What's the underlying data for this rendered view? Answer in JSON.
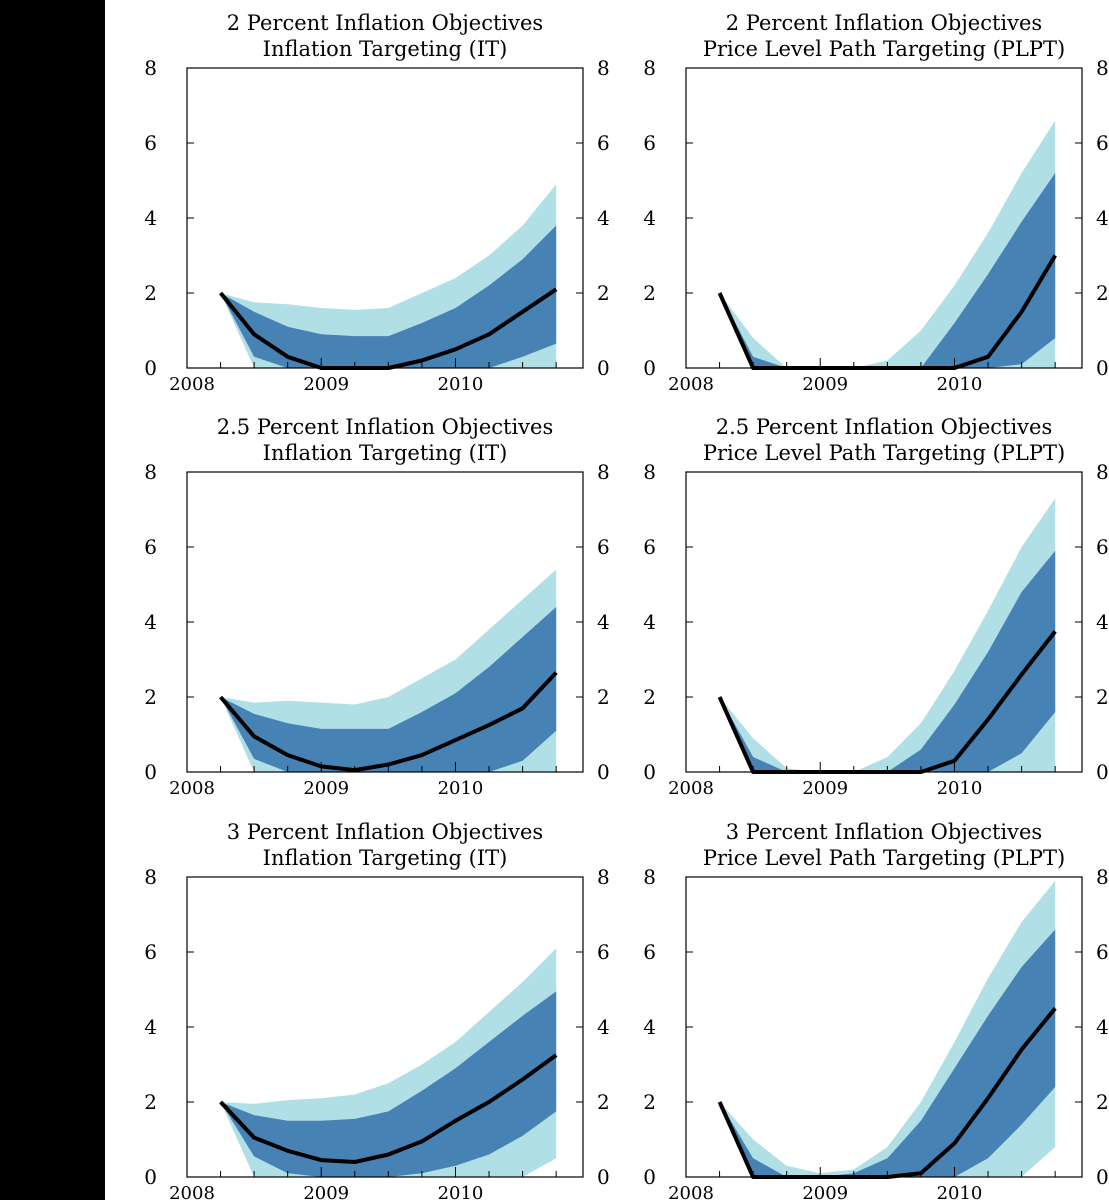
{
  "colors": {
    "outer_band": "#b0e0e6",
    "inner_band": "#4682b4",
    "median_line": "#000000",
    "side_bar": "#000000"
  },
  "chart_data": [
    {
      "type": "area",
      "title": "2 Percent Inflation Objectives",
      "subtitle": "Inflation Targeting (IT)",
      "xlabel": "",
      "ylabel": "",
      "xlim": [
        2008.0,
        2010.95
      ],
      "ylim": [
        0,
        8
      ],
      "x_ticks": [
        2008,
        2009,
        2010
      ],
      "y_ticks": [
        0,
        2,
        4,
        6,
        8
      ],
      "grid": false,
      "x": [
        2008.25,
        2008.5,
        2008.75,
        2009.0,
        2009.25,
        2009.5,
        2009.75,
        2010.0,
        2010.25,
        2010.5,
        2010.75
      ],
      "outer_upper": [
        2.0,
        1.75,
        1.7,
        1.6,
        1.55,
        1.6,
        2.0,
        2.4,
        3.0,
        3.8,
        4.9
      ],
      "inner_upper": [
        2.0,
        1.5,
        1.1,
        0.9,
        0.85,
        0.85,
        1.2,
        1.6,
        2.2,
        2.9,
        3.8
      ],
      "median": [
        2.0,
        0.9,
        0.3,
        0.0,
        0.0,
        0.0,
        0.2,
        0.5,
        0.9,
        1.5,
        2.1
      ],
      "inner_lower": [
        2.0,
        0.3,
        0.0,
        0.0,
        0.0,
        0.0,
        0.0,
        0.0,
        0.0,
        0.3,
        0.65
      ],
      "outer_lower": [
        2.0,
        0.0,
        0.0,
        0.0,
        0.0,
        0.0,
        0.0,
        0.0,
        0.0,
        0.0,
        0.0
      ]
    },
    {
      "type": "area",
      "title": "2 Percent Inflation Objectives",
      "subtitle": "Price Level Path Targeting (PLPT)",
      "xlabel": "",
      "ylabel": "",
      "xlim": [
        2008.0,
        2010.95
      ],
      "ylim": [
        0,
        8
      ],
      "x_ticks": [
        2008,
        2009,
        2010
      ],
      "y_ticks": [
        0,
        2,
        4,
        6,
        8
      ],
      "grid": false,
      "x": [
        2008.25,
        2008.5,
        2008.75,
        2009.0,
        2009.25,
        2009.5,
        2009.75,
        2010.0,
        2010.25,
        2010.5,
        2010.75
      ],
      "outer_upper": [
        2.0,
        0.8,
        0.0,
        0.0,
        0.0,
        0.2,
        1.0,
        2.2,
        3.6,
        5.2,
        6.6
      ],
      "inner_upper": [
        2.0,
        0.3,
        0.0,
        0.0,
        0.0,
        0.0,
        0.0,
        1.2,
        2.5,
        3.9,
        5.2
      ],
      "median": [
        2.0,
        0.0,
        0.0,
        0.0,
        0.0,
        0.0,
        0.0,
        0.0,
        0.3,
        1.5,
        3.0
      ],
      "inner_lower": [
        2.0,
        0.0,
        0.0,
        0.0,
        0.0,
        0.0,
        0.0,
        0.0,
        0.0,
        0.1,
        0.8
      ],
      "outer_lower": [
        2.0,
        0.0,
        0.0,
        0.0,
        0.0,
        0.0,
        0.0,
        0.0,
        0.0,
        0.0,
        0.0
      ]
    },
    {
      "type": "area",
      "title": "2.5 Percent Inflation Objectives",
      "subtitle": "Inflation Targeting (IT)",
      "xlabel": "",
      "ylabel": "",
      "xlim": [
        2008.0,
        2010.95
      ],
      "ylim": [
        0,
        8
      ],
      "x_ticks": [
        2008,
        2009,
        2010
      ],
      "y_ticks": [
        0,
        2,
        4,
        6,
        8
      ],
      "grid": false,
      "x": [
        2008.25,
        2008.5,
        2008.75,
        2009.0,
        2009.25,
        2009.5,
        2009.75,
        2010.0,
        2010.25,
        2010.5,
        2010.75
      ],
      "outer_upper": [
        2.0,
        1.85,
        1.9,
        1.85,
        1.8,
        2.0,
        2.5,
        3.0,
        3.8,
        4.6,
        5.4
      ],
      "inner_upper": [
        2.0,
        1.55,
        1.3,
        1.15,
        1.15,
        1.15,
        1.6,
        2.1,
        2.8,
        3.6,
        4.4
      ],
      "median": [
        2.0,
        0.95,
        0.45,
        0.15,
        0.05,
        0.2,
        0.45,
        0.85,
        1.25,
        1.7,
        2.65
      ],
      "inner_lower": [
        2.0,
        0.35,
        0.0,
        0.0,
        0.0,
        0.0,
        0.0,
        0.0,
        0.0,
        0.3,
        1.1
      ],
      "outer_lower": [
        2.0,
        0.0,
        0.0,
        0.0,
        0.0,
        0.0,
        0.0,
        0.0,
        0.0,
        0.0,
        0.0
      ]
    },
    {
      "type": "area",
      "title": "2.5 Percent Inflation Objectives",
      "subtitle": "Price Level Path Targeting (PLPT)",
      "xlabel": "",
      "ylabel": "",
      "xlim": [
        2008.0,
        2010.95
      ],
      "ylim": [
        0,
        8
      ],
      "x_ticks": [
        2008,
        2009,
        2010
      ],
      "y_ticks": [
        0,
        2,
        4,
        6,
        8
      ],
      "grid": false,
      "x": [
        2008.25,
        2008.5,
        2008.75,
        2009.0,
        2009.25,
        2009.5,
        2009.75,
        2010.0,
        2010.25,
        2010.5,
        2010.75
      ],
      "outer_upper": [
        2.0,
        0.9,
        0.1,
        0.0,
        0.0,
        0.4,
        1.3,
        2.7,
        4.3,
        6.0,
        7.3
      ],
      "inner_upper": [
        2.0,
        0.4,
        0.0,
        0.0,
        0.0,
        0.0,
        0.6,
        1.8,
        3.2,
        4.8,
        5.9
      ],
      "median": [
        2.0,
        0.0,
        0.0,
        0.0,
        0.0,
        0.0,
        0.0,
        0.3,
        1.4,
        2.6,
        3.75
      ],
      "inner_lower": [
        2.0,
        0.0,
        0.0,
        0.0,
        0.0,
        0.0,
        0.0,
        0.0,
        0.0,
        0.5,
        1.6
      ],
      "outer_lower": [
        2.0,
        0.0,
        0.0,
        0.0,
        0.0,
        0.0,
        0.0,
        0.0,
        0.0,
        0.0,
        0.0
      ]
    },
    {
      "type": "area",
      "title": "3 Percent Inflation Objectives",
      "subtitle": "Inflation Targeting (IT)",
      "xlabel": "",
      "ylabel": "",
      "xlim": [
        2008.0,
        2010.95
      ],
      "ylim": [
        0,
        8
      ],
      "x_ticks": [
        2008,
        2009,
        2010
      ],
      "y_ticks": [
        0,
        2,
        4,
        6,
        8
      ],
      "grid": false,
      "x": [
        2008.25,
        2008.5,
        2008.75,
        2009.0,
        2009.25,
        2009.5,
        2009.75,
        2010.0,
        2010.25,
        2010.5,
        2010.75
      ],
      "outer_upper": [
        2.0,
        1.95,
        2.05,
        2.1,
        2.2,
        2.5,
        3.0,
        3.6,
        4.4,
        5.2,
        6.1
      ],
      "inner_upper": [
        2.0,
        1.65,
        1.5,
        1.5,
        1.55,
        1.75,
        2.3,
        2.9,
        3.6,
        4.3,
        4.95
      ],
      "median": [
        2.0,
        1.05,
        0.7,
        0.45,
        0.4,
        0.6,
        0.95,
        1.5,
        2.0,
        2.6,
        3.25
      ],
      "inner_lower": [
        2.0,
        0.55,
        0.1,
        0.0,
        0.0,
        0.0,
        0.1,
        0.3,
        0.6,
        1.1,
        1.75
      ],
      "outer_lower": [
        2.0,
        0.0,
        0.0,
        0.0,
        0.0,
        0.0,
        0.0,
        0.0,
        0.0,
        0.0,
        0.5
      ]
    },
    {
      "type": "area",
      "title": "3 Percent Inflation Objectives",
      "subtitle": "Price Level Path Targeting (PLPT)",
      "xlabel": "",
      "ylabel": "",
      "xlim": [
        2008.0,
        2010.95
      ],
      "ylim": [
        0,
        8
      ],
      "x_ticks": [
        2008,
        2009,
        2010
      ],
      "y_ticks": [
        0,
        2,
        4,
        6,
        8
      ],
      "grid": false,
      "x": [
        2008.25,
        2008.5,
        2008.75,
        2009.0,
        2009.25,
        2009.5,
        2009.75,
        2010.0,
        2010.25,
        2010.5,
        2010.75
      ],
      "outer_upper": [
        2.0,
        1.0,
        0.3,
        0.1,
        0.2,
        0.8,
        2.0,
        3.6,
        5.3,
        6.8,
        7.9
      ],
      "inner_upper": [
        2.0,
        0.5,
        0.0,
        0.0,
        0.1,
        0.5,
        1.5,
        2.9,
        4.3,
        5.6,
        6.6
      ],
      "median": [
        2.0,
        0.0,
        0.0,
        0.0,
        0.0,
        0.0,
        0.1,
        0.9,
        2.1,
        3.4,
        4.5
      ],
      "inner_lower": [
        2.0,
        0.0,
        0.0,
        0.0,
        0.0,
        0.0,
        0.0,
        0.0,
        0.5,
        1.4,
        2.4
      ],
      "outer_lower": [
        2.0,
        0.0,
        0.0,
        0.0,
        0.0,
        0.0,
        0.0,
        0.0,
        0.0,
        0.0,
        0.8
      ]
    }
  ]
}
